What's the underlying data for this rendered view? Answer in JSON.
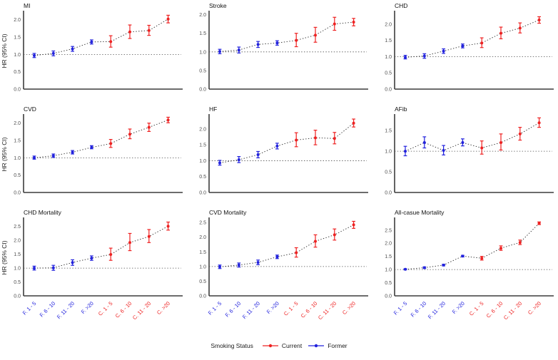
{
  "axis": {
    "y_label": "HR (95% CI)"
  },
  "legend": {
    "title": "Smoking Status",
    "items": [
      {
        "label": "Current",
        "color": "#ee2222"
      },
      {
        "label": "Former",
        "color": "#2222dd"
      }
    ]
  },
  "colors": {
    "current": "#ee2222",
    "former": "#2222dd",
    "axis": "#3c3c3c",
    "trend_line": "#2a2a2a",
    "ref_line": "#4a4a4a",
    "tick_text": "#4d4d4d",
    "title_text": "#111111"
  },
  "chart_data": {
    "type": "scatter",
    "note": "Forest-style point estimates with 95% CI error bars, dotted trend line, dotted reference line at HR = 1.0",
    "categories": [
      "F. 1 - 5",
      "F. 6 - 10",
      "F. 11 - 20",
      "F. >20",
      "C. 1 - 5",
      "C. 6 - 10",
      "C. 11 - 20",
      "C. >20"
    ],
    "groups": [
      "former",
      "former",
      "former",
      "former",
      "current",
      "current",
      "current",
      "current"
    ],
    "ref_value": 1.0,
    "panels": [
      {
        "title": "MI",
        "ylim": [
          0,
          2.2
        ],
        "yticks": [
          0.0,
          0.5,
          1.0,
          1.5,
          2.0
        ],
        "points": [
          {
            "hr": 0.97,
            "lo": 0.91,
            "hi": 1.03
          },
          {
            "hr": 1.03,
            "lo": 0.96,
            "hi": 1.1
          },
          {
            "hr": 1.16,
            "lo": 1.09,
            "hi": 1.23
          },
          {
            "hr": 1.36,
            "lo": 1.3,
            "hi": 1.42
          },
          {
            "hr": 1.37,
            "lo": 1.21,
            "hi": 1.54
          },
          {
            "hr": 1.65,
            "lo": 1.46,
            "hi": 1.85
          },
          {
            "hr": 1.69,
            "lo": 1.55,
            "hi": 1.84
          },
          {
            "hr": 2.02,
            "lo": 1.91,
            "hi": 2.13
          }
        ]
      },
      {
        "title": "Stroke",
        "ylim": [
          0,
          2.05
        ],
        "yticks": [
          0.0,
          0.5,
          1.0,
          1.5,
          2.0
        ],
        "points": [
          {
            "hr": 1.01,
            "lo": 0.95,
            "hi": 1.07
          },
          {
            "hr": 1.05,
            "lo": 0.97,
            "hi": 1.13
          },
          {
            "hr": 1.2,
            "lo": 1.12,
            "hi": 1.28
          },
          {
            "hr": 1.24,
            "lo": 1.18,
            "hi": 1.3
          },
          {
            "hr": 1.31,
            "lo": 1.14,
            "hi": 1.5
          },
          {
            "hr": 1.45,
            "lo": 1.26,
            "hi": 1.66
          },
          {
            "hr": 1.75,
            "lo": 1.58,
            "hi": 1.93
          },
          {
            "hr": 1.8,
            "lo": 1.7,
            "hi": 1.9
          }
        ]
      },
      {
        "title": "CHD",
        "ylim": [
          0,
          2.35
        ],
        "yticks": [
          0.0,
          0.5,
          1.0,
          1.5,
          2.0
        ],
        "points": [
          {
            "hr": 0.98,
            "lo": 0.93,
            "hi": 1.04
          },
          {
            "hr": 1.02,
            "lo": 0.95,
            "hi": 1.09
          },
          {
            "hr": 1.17,
            "lo": 1.1,
            "hi": 1.24
          },
          {
            "hr": 1.33,
            "lo": 1.27,
            "hi": 1.39
          },
          {
            "hr": 1.42,
            "lo": 1.28,
            "hi": 1.58
          },
          {
            "hr": 1.72,
            "lo": 1.55,
            "hi": 1.91
          },
          {
            "hr": 1.88,
            "lo": 1.73,
            "hi": 2.04
          },
          {
            "hr": 2.13,
            "lo": 2.03,
            "hi": 2.23
          }
        ]
      },
      {
        "title": "CVD",
        "ylim": [
          0,
          2.2
        ],
        "yticks": [
          0.0,
          0.5,
          1.0,
          1.5,
          2.0
        ],
        "points": [
          {
            "hr": 1.0,
            "lo": 0.96,
            "hi": 1.05
          },
          {
            "hr": 1.06,
            "lo": 1.01,
            "hi": 1.11
          },
          {
            "hr": 1.16,
            "lo": 1.11,
            "hi": 1.21
          },
          {
            "hr": 1.3,
            "lo": 1.26,
            "hi": 1.35
          },
          {
            "hr": 1.41,
            "lo": 1.3,
            "hi": 1.53
          },
          {
            "hr": 1.68,
            "lo": 1.55,
            "hi": 1.83
          },
          {
            "hr": 1.88,
            "lo": 1.76,
            "hi": 2.0
          },
          {
            "hr": 2.09,
            "lo": 2.01,
            "hi": 2.17
          }
        ]
      },
      {
        "title": "HF",
        "ylim": [
          0,
          2.4
        ],
        "yticks": [
          0.0,
          0.5,
          1.0,
          1.5,
          2.0
        ],
        "points": [
          {
            "hr": 0.93,
            "lo": 0.86,
            "hi": 1.01
          },
          {
            "hr": 1.03,
            "lo": 0.94,
            "hi": 1.13
          },
          {
            "hr": 1.19,
            "lo": 1.09,
            "hi": 1.29
          },
          {
            "hr": 1.46,
            "lo": 1.37,
            "hi": 1.55
          },
          {
            "hr": 1.65,
            "lo": 1.44,
            "hi": 1.88
          },
          {
            "hr": 1.72,
            "lo": 1.5,
            "hi": 1.96
          },
          {
            "hr": 1.7,
            "lo": 1.53,
            "hi": 1.89
          },
          {
            "hr": 2.18,
            "lo": 2.06,
            "hi": 2.31
          }
        ]
      },
      {
        "title": "AFib",
        "ylim": [
          0,
          1.85
        ],
        "yticks": [
          0.0,
          0.5,
          1.0,
          1.5
        ],
        "points": [
          {
            "hr": 1.0,
            "lo": 0.89,
            "hi": 1.12
          },
          {
            "hr": 1.21,
            "lo": 1.08,
            "hi": 1.35
          },
          {
            "hr": 1.02,
            "lo": 0.91,
            "hi": 1.14
          },
          {
            "hr": 1.21,
            "lo": 1.13,
            "hi": 1.3
          },
          {
            "hr": 1.08,
            "lo": 0.93,
            "hi": 1.25
          },
          {
            "hr": 1.21,
            "lo": 1.03,
            "hi": 1.42
          },
          {
            "hr": 1.42,
            "lo": 1.27,
            "hi": 1.58
          },
          {
            "hr": 1.69,
            "lo": 1.58,
            "hi": 1.81
          }
        ]
      },
      {
        "title": "CHD Mortality",
        "ylim": [
          0,
          2.75
        ],
        "yticks": [
          0.0,
          0.5,
          1.0,
          1.5,
          2.0,
          2.5
        ],
        "points": [
          {
            "hr": 1.0,
            "lo": 0.93,
            "hi": 1.07
          },
          {
            "hr": 1.01,
            "lo": 0.92,
            "hi": 1.1
          },
          {
            "hr": 1.2,
            "lo": 1.1,
            "hi": 1.3
          },
          {
            "hr": 1.36,
            "lo": 1.28,
            "hi": 1.44
          },
          {
            "hr": 1.49,
            "lo": 1.28,
            "hi": 1.72
          },
          {
            "hr": 1.92,
            "lo": 1.63,
            "hi": 2.25
          },
          {
            "hr": 2.14,
            "lo": 1.92,
            "hi": 2.39
          },
          {
            "hr": 2.51,
            "lo": 2.37,
            "hi": 2.66
          }
        ]
      },
      {
        "title": "CVD Mortality",
        "ylim": [
          0,
          2.6
        ],
        "yticks": [
          0.0,
          0.5,
          1.0,
          1.5,
          2.0,
          2.5
        ],
        "points": [
          {
            "hr": 0.99,
            "lo": 0.93,
            "hi": 1.05
          },
          {
            "hr": 1.05,
            "lo": 0.98,
            "hi": 1.12
          },
          {
            "hr": 1.14,
            "lo": 1.06,
            "hi": 1.22
          },
          {
            "hr": 1.33,
            "lo": 1.27,
            "hi": 1.39
          },
          {
            "hr": 1.47,
            "lo": 1.32,
            "hi": 1.64
          },
          {
            "hr": 1.86,
            "lo": 1.66,
            "hi": 2.08
          },
          {
            "hr": 2.08,
            "lo": 1.9,
            "hi": 2.28
          },
          {
            "hr": 2.42,
            "lo": 2.3,
            "hi": 2.54
          }
        ]
      },
      {
        "title": "All-casue Mortality",
        "ylim": [
          0,
          2.9
        ],
        "yticks": [
          0.0,
          0.5,
          1.0,
          1.5,
          2.0,
          2.5
        ],
        "points": [
          {
            "hr": 1.01,
            "lo": 0.99,
            "hi": 1.03
          },
          {
            "hr": 1.07,
            "lo": 1.04,
            "hi": 1.1
          },
          {
            "hr": 1.17,
            "lo": 1.14,
            "hi": 1.2
          },
          {
            "hr": 1.51,
            "lo": 1.48,
            "hi": 1.54
          },
          {
            "hr": 1.43,
            "lo": 1.36,
            "hi": 1.5
          },
          {
            "hr": 1.81,
            "lo": 1.73,
            "hi": 1.9
          },
          {
            "hr": 2.03,
            "lo": 1.95,
            "hi": 2.12
          },
          {
            "hr": 2.76,
            "lo": 2.71,
            "hi": 2.81
          }
        ]
      }
    ]
  }
}
